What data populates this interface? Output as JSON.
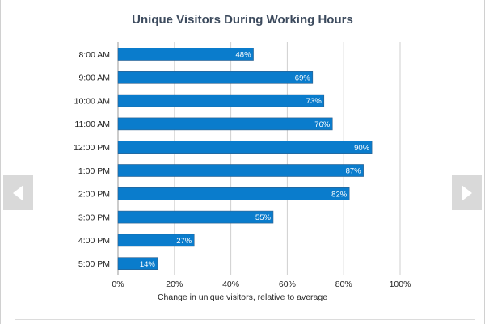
{
  "colors": {
    "bar": "#0a7ccc",
    "bar_border": "#2f5f8a",
    "grid": "#cfcfcf",
    "text": "#222222",
    "title": "#3d4b5e",
    "nav": "#d9d9d9"
  },
  "navigation": {
    "prev_icon": "arrow-left-icon",
    "next_icon": "arrow-right-icon"
  },
  "chart_data": {
    "type": "bar",
    "orientation": "horizontal",
    "title": "Unique Visitors During Working Hours",
    "xlabel": "Change in unique visitors, relative to average",
    "ylabel": "",
    "xlim": [
      0,
      100
    ],
    "x_ticks": [
      0,
      20,
      40,
      60,
      80,
      100
    ],
    "x_tick_labels": [
      "0%",
      "20%",
      "40%",
      "60%",
      "80%",
      "100%"
    ],
    "grid": true,
    "categories": [
      "8:00 AM",
      "9:00 AM",
      "10:00 AM",
      "11:00 AM",
      "12:00 PM",
      "1:00 PM",
      "2:00 PM",
      "3:00 PM",
      "4:00 PM",
      "5:00 PM"
    ],
    "values": [
      48,
      69,
      73,
      76,
      90,
      87,
      82,
      55,
      27,
      14
    ],
    "value_labels": [
      "48%",
      "69%",
      "73%",
      "76%",
      "90%",
      "87%",
      "82%",
      "55%",
      "27%",
      "14%"
    ]
  }
}
